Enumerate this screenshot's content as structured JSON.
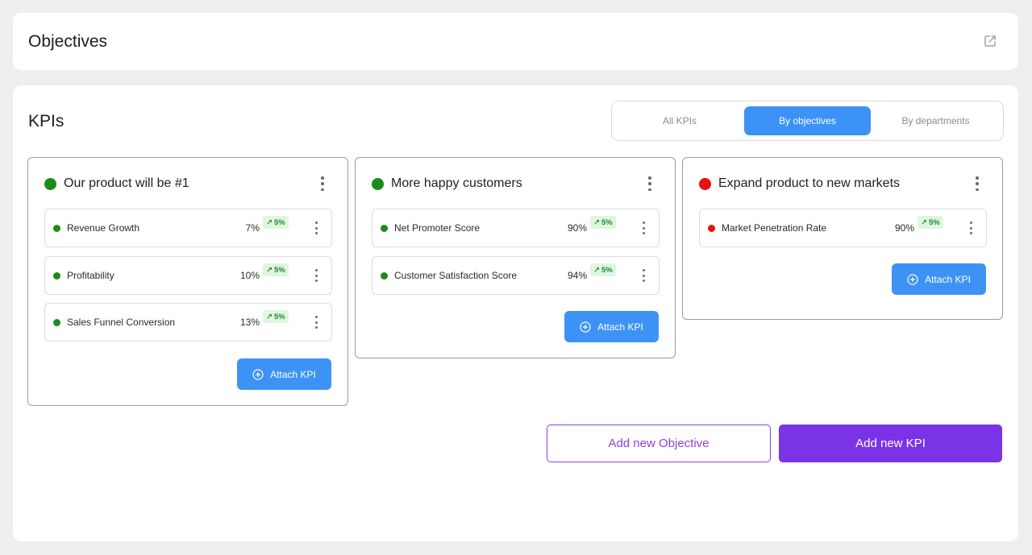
{
  "header": {
    "title": "Objectives",
    "icon": "external-link-icon"
  },
  "kpis": {
    "title": "KPIs",
    "tabs": [
      {
        "label": "All KPIs",
        "active": false
      },
      {
        "label": "By objectives",
        "active": true
      },
      {
        "label": "By departments",
        "active": false
      }
    ]
  },
  "objectives": [
    {
      "title": "Our product will be #1",
      "status_color": "#1a8c1a",
      "kpis": [
        {
          "label": "Revenue Growth",
          "value": "7%",
          "trend": "5%",
          "status_color": "#1a8c1a"
        },
        {
          "label": "Profitability",
          "value": "10%",
          "trend": "5%",
          "status_color": "#1a8c1a"
        },
        {
          "label": "Sales Funnel Conversion",
          "value": "13%",
          "trend": "5%",
          "status_color": "#1a8c1a"
        }
      ],
      "attach_label": "Attach KPI"
    },
    {
      "title": "More happy customers",
      "status_color": "#1a8c1a",
      "kpis": [
        {
          "label": "Net Promoter Score",
          "value": "90%",
          "trend": "5%",
          "status_color": "#1a8c1a"
        },
        {
          "label": "Customer Satisfaction Score",
          "value": "94%",
          "trend": "5%",
          "status_color": "#1a8c1a"
        }
      ],
      "attach_label": "Attach KPI"
    },
    {
      "title": "Expand product to new markets",
      "status_color": "#e81010",
      "kpis": [
        {
          "label": "Market Penetration Rate",
          "value": "90%",
          "trend": "5%",
          "status_color": "#e81010"
        }
      ],
      "attach_label": "Attach KPI"
    }
  ],
  "actions": {
    "add_objective": "Add new Objective",
    "add_kpi": "Add new KPI"
  },
  "colors": {
    "accent_blue": "#3d93f5",
    "accent_purple": "#7b33e6",
    "trend_bg": "#dff6df",
    "trend_text": "#1e8c2a"
  }
}
